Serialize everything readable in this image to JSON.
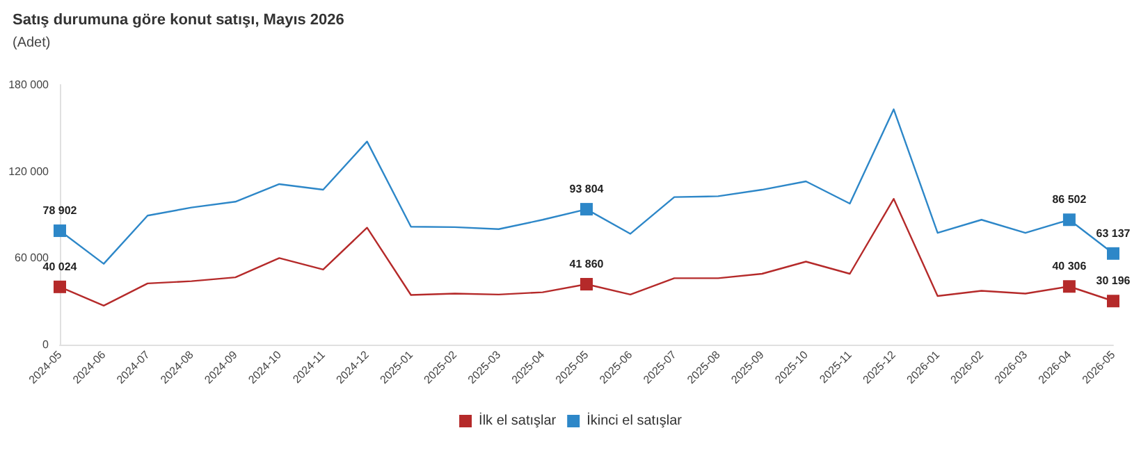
{
  "chart_data": {
    "type": "line",
    "title": "Satış durumuna göre konut satışı, Mayıs 2026",
    "subtitle": "(Adet)",
    "categories": [
      "2024-05",
      "2024-06",
      "2024-07",
      "2024-08",
      "2024-09",
      "2024-10",
      "2024-11",
      "2024-12",
      "2025-01",
      "2025-02",
      "2025-03",
      "2025-04",
      "2025-05",
      "2025-06",
      "2025-07",
      "2025-08",
      "2025-09",
      "2025-10",
      "2025-11",
      "2025-12",
      "2026-01",
      "2026-02",
      "2026-03",
      "2026-04",
      "2026-05"
    ],
    "series": [
      {
        "name": "İlk el satışlar",
        "color": "#b52a2a",
        "values": [
          40024,
          27000,
          42400,
          44000,
          46600,
          60000,
          52000,
          81000,
          34400,
          35400,
          34700,
          36300,
          41860,
          34700,
          46000,
          46000,
          49100,
          57500,
          49100,
          101000,
          33700,
          37300,
          35400,
          40306,
          30196
        ],
        "value_labels": [
          "40 024",
          null,
          null,
          null,
          null,
          null,
          null,
          null,
          null,
          null,
          null,
          null,
          "41 860",
          null,
          null,
          null,
          null,
          null,
          null,
          null,
          null,
          null,
          null,
          "40 306",
          "30 196"
        ]
      },
      {
        "name": "İkinci el satışlar",
        "color": "#2d87c8",
        "values": [
          78902,
          56000,
          89400,
          95000,
          99000,
          111200,
          107300,
          140700,
          81700,
          81400,
          80000,
          86500,
          93804,
          76800,
          102200,
          102800,
          107300,
          113100,
          97700,
          163000,
          77400,
          86500,
          77400,
          86502,
          63137
        ],
        "value_labels": [
          "78 902",
          null,
          null,
          null,
          null,
          null,
          null,
          null,
          null,
          null,
          null,
          null,
          "93 804",
          null,
          null,
          null,
          null,
          null,
          null,
          null,
          null,
          null,
          null,
          "86 502",
          "63 137"
        ]
      }
    ],
    "ylim": [
      0,
      180000
    ],
    "yticks": [
      0,
      {
        "value": 60000,
        "label": "60 000"
      },
      {
        "value": 120000,
        "label": "120 000"
      },
      {
        "value": 180000,
        "label": "180 000"
      }
    ],
    "line_style": "solid",
    "legend": "bottom"
  }
}
